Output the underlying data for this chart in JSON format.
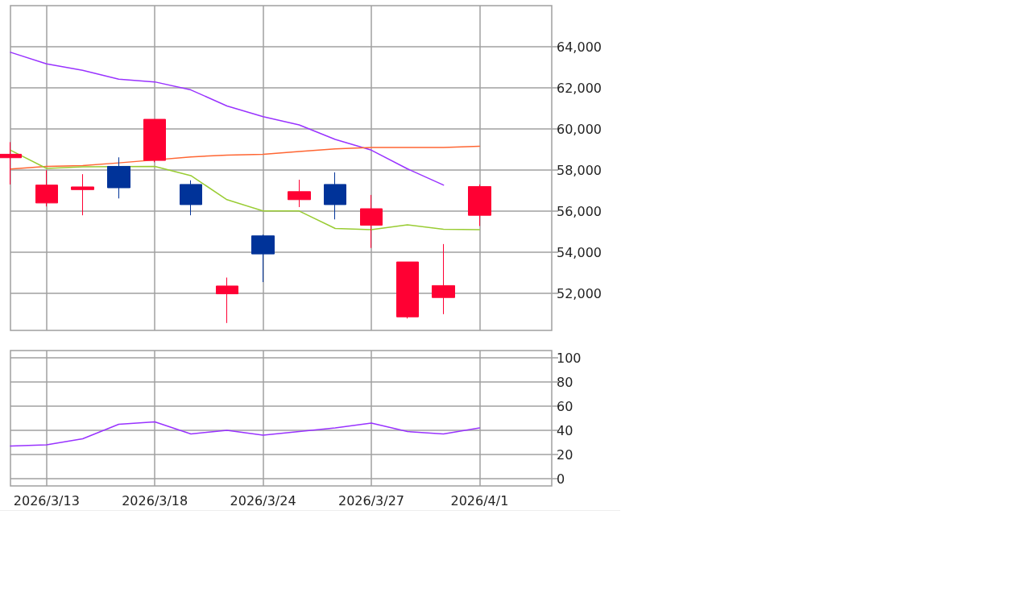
{
  "chart_data": [
    {
      "type": "candlestick",
      "categories": [
        null,
        "2026/3/13",
        null,
        null,
        "2026/3/18",
        null,
        null,
        "2026/3/24",
        null,
        null,
        "2026/3/27",
        null,
        null,
        "2026/4/1"
      ],
      "ohlc": [
        [
          58600,
          59360,
          57300,
          58770
        ],
        [
          56400,
          57990,
          56230,
          57270
        ],
        [
          57050,
          57800,
          55800,
          57180
        ],
        [
          58180,
          58620,
          56620,
          57140
        ],
        [
          58470,
          60470,
          58380,
          60470
        ],
        [
          57300,
          57500,
          55800,
          56320
        ],
        [
          51980,
          52770,
          50560,
          52360
        ],
        [
          54800,
          54860,
          52550,
          53920
        ],
        [
          56560,
          57530,
          56200,
          56950
        ],
        [
          57300,
          57890,
          55600,
          56320
        ],
        [
          55320,
          56790,
          54210,
          56120
        ],
        [
          50860,
          53530,
          50780,
          53530
        ],
        [
          51800,
          54400,
          50990,
          52380
        ],
        [
          55800,
          57300,
          55280,
          57200
        ]
      ],
      "colors": [
        "#ff0033",
        "#ff0033",
        "#ff0033",
        "#003399",
        "#ff0033",
        "#003399",
        "#ff0033",
        "#003399",
        "#ff0033",
        "#003399",
        "#ff0033",
        "#ff0033",
        "#ff0033",
        "#ff0033"
      ],
      "series": [
        {
          "type": "line",
          "color": "#9933ff",
          "values": [
            63730,
            63170,
            62850,
            62420,
            62290,
            61900,
            61120,
            60600,
            60200,
            59490,
            58970,
            58060,
            57270,
            null
          ]
        },
        {
          "type": "line",
          "color": "#ff6633",
          "values": [
            58050,
            58180,
            58220,
            58350,
            null,
            58640,
            58730,
            58770,
            58900,
            59030,
            59100,
            59100,
            59100,
            59160
          ]
        },
        {
          "type": "line",
          "color": "#99cc33",
          "values": [
            58970,
            58080,
            58160,
            null,
            58180,
            57730,
            56560,
            56010,
            56010,
            55160,
            55100,
            55340,
            55120,
            55100
          ]
        }
      ],
      "ylim": [
        50200,
        66000
      ],
      "yticks": [
        {
          "value": 52000,
          "label": "52,000"
        },
        {
          "value": 54000,
          "label": "54,000"
        },
        {
          "value": 56000,
          "label": "56,000"
        },
        {
          "value": 58000,
          "label": "58,000"
        },
        {
          "value": 60000,
          "label": "60,000"
        },
        {
          "value": 62000,
          "label": "62,000"
        },
        {
          "value": 64000,
          "label": "64,000"
        }
      ],
      "grid": true,
      "marker": "none",
      "tick_labels": "y"
    },
    {
      "type": "line",
      "categories": [
        null,
        "2026/3/13",
        null,
        null,
        "2026/3/18",
        null,
        null,
        "2026/3/24",
        null,
        null,
        "2026/3/27",
        null,
        null,
        "2026/4/1"
      ],
      "series": [
        {
          "color": "#9933ff",
          "values": [
            27,
            28,
            33,
            45,
            47,
            37,
            40,
            36,
            39,
            42,
            46,
            39,
            37,
            42
          ]
        }
      ],
      "ylim": [
        -6,
        106
      ],
      "yticks": [
        0,
        20,
        40,
        60,
        80,
        100
      ],
      "grid": true,
      "marker": "none"
    }
  ]
}
